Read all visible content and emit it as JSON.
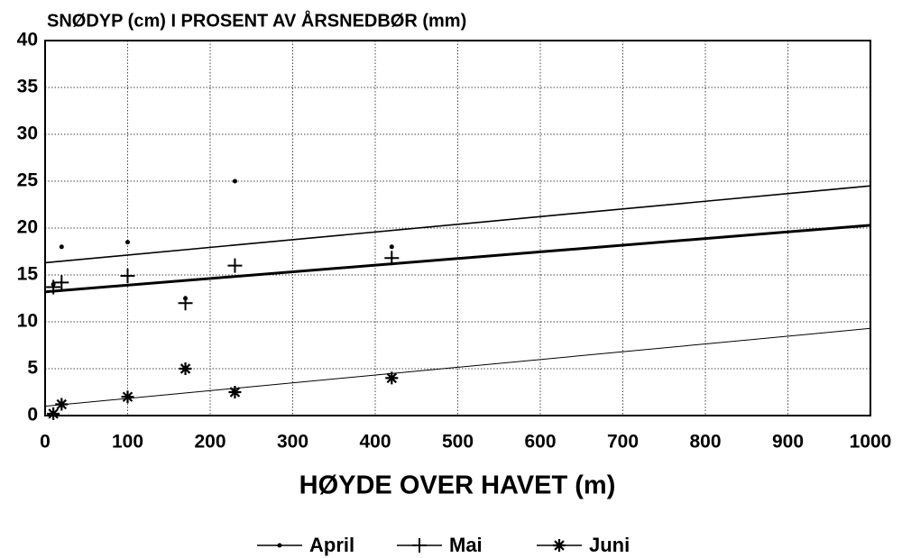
{
  "chart_data": {
    "type": "scatter",
    "title": "SNØDYP (cm) I PROSENT AV ÅRSNEDBØR (mm)",
    "x_label": "HØYDE OVER HAVET (m)",
    "x": [
      10,
      20,
      100,
      170,
      230,
      420
    ],
    "series": [
      {
        "name": "April",
        "color": "#000000",
        "marker": "dot",
        "values": [
          14,
          18,
          18.5,
          12.5,
          25,
          18
        ],
        "trend": {
          "x": [
            0,
            1000
          ],
          "values": [
            16.3,
            24.5
          ]
        }
      },
      {
        "name": "Mai",
        "color": "#000000",
        "marker": "plus",
        "values": [
          13.7,
          14.2,
          14.9,
          12,
          16,
          16.8
        ],
        "trend": {
          "x": [
            0,
            1000
          ],
          "values": [
            13.2,
            20.3
          ]
        }
      },
      {
        "name": "Juni",
        "color": "#000000",
        "marker": "star",
        "values": [
          0.2,
          1.2,
          2,
          5,
          2.5,
          4
        ],
        "trend": {
          "x": [
            0,
            1000
          ],
          "values": [
            1,
            9.3
          ]
        }
      }
    ],
    "xlim": [
      0,
      1000
    ],
    "xticks": [
      0,
      100,
      200,
      300,
      400,
      500,
      600,
      700,
      800,
      900,
      1000
    ],
    "ylim": [
      0,
      40
    ],
    "yticks": [
      0,
      5,
      10,
      15,
      20,
      25,
      30,
      35,
      40
    ],
    "grid": true,
    "legend": "bottom"
  }
}
